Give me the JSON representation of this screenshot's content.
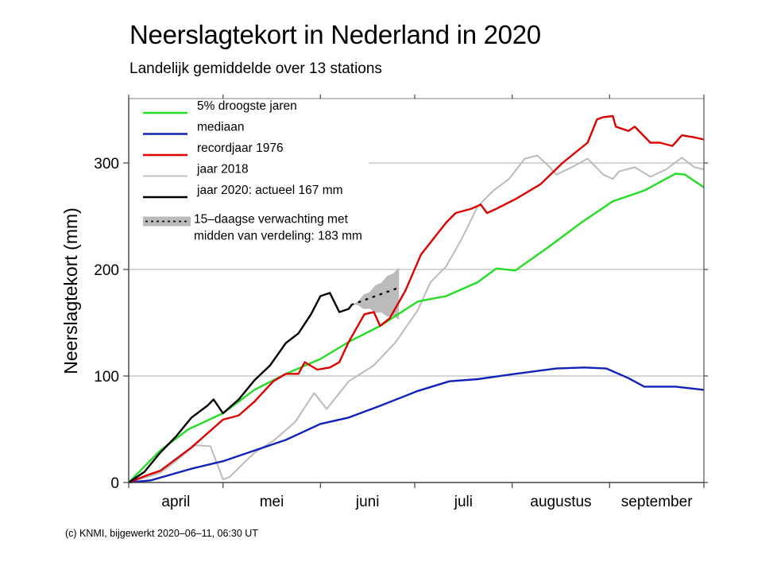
{
  "header": {
    "title": "Neerslagtekort in Nederland in 2020",
    "subtitle": "Landelijk gemiddelde over 13 stations"
  },
  "footer": {
    "credit": "(c) KNMI, bijgewerkt 2020–06–11, 06:30 UT"
  },
  "chart_data": {
    "type": "line",
    "title": "Neerslagtekort in Nederland in 2020",
    "subtitle": "Landelijk gemiddelde over 13 stations",
    "xlabel": "",
    "ylabel": "Neerslagtekort (mm)",
    "x_unit": "days since 1 April",
    "xlim": [
      0,
      183
    ],
    "ylim": [
      0,
      355
    ],
    "grid": "horizontal",
    "yticks": [
      0,
      100,
      200,
      300
    ],
    "ytick_labels": [
      "0",
      "100",
      "200",
      "300"
    ],
    "month_boundaries": [
      0,
      30,
      61,
      91,
      122,
      153,
      183
    ],
    "month_labels": [
      "april",
      "mei",
      "juni",
      "juli",
      "augustus",
      "september"
    ],
    "legend_position": "top-left",
    "series": [
      {
        "name": "5% droogste jaren",
        "color": "#22dd22",
        "points": [
          [
            0,
            0
          ],
          [
            10,
            30
          ],
          [
            19,
            50
          ],
          [
            30,
            65
          ],
          [
            40,
            87
          ],
          [
            50,
            102
          ],
          [
            61,
            116
          ],
          [
            70,
            132
          ],
          [
            80,
            147
          ],
          [
            92,
            170
          ],
          [
            101,
            175
          ],
          [
            111,
            188
          ],
          [
            117,
            201
          ],
          [
            123,
            199
          ],
          [
            134,
            222
          ],
          [
            144,
            244
          ],
          [
            154,
            264
          ],
          [
            164,
            274
          ],
          [
            174,
            290
          ],
          [
            177,
            289
          ],
          [
            183,
            277
          ]
        ]
      },
      {
        "name": "mediaan",
        "color": "#1122bb",
        "points": [
          [
            0,
            0
          ],
          [
            7,
            2
          ],
          [
            20,
            13
          ],
          [
            30,
            20
          ],
          [
            40,
            30
          ],
          [
            50,
            40
          ],
          [
            61,
            55
          ],
          [
            70,
            61
          ],
          [
            80,
            72
          ],
          [
            92,
            86
          ],
          [
            102,
            95
          ],
          [
            111,
            97
          ],
          [
            123,
            102
          ],
          [
            136,
            107
          ],
          [
            145,
            108
          ],
          [
            152,
            107
          ],
          [
            159,
            98
          ],
          [
            164,
            90
          ],
          [
            174,
            90
          ],
          [
            183,
            87
          ]
        ]
      },
      {
        "name": "recordjaar 1976",
        "color": "#dd0000",
        "points": [
          [
            0,
            0
          ],
          [
            6,
            7
          ],
          [
            10,
            11
          ],
          [
            20,
            33
          ],
          [
            30,
            59
          ],
          [
            35,
            63
          ],
          [
            40,
            76
          ],
          [
            46,
            95
          ],
          [
            50,
            102
          ],
          [
            54,
            102
          ],
          [
            56,
            113
          ],
          [
            60,
            106
          ],
          [
            64,
            108
          ],
          [
            67,
            113
          ],
          [
            70,
            132
          ],
          [
            75,
            158
          ],
          [
            78,
            160
          ],
          [
            80,
            147
          ],
          [
            83,
            154
          ],
          [
            88,
            180
          ],
          [
            93,
            214
          ],
          [
            101,
            244
          ],
          [
            104,
            253
          ],
          [
            109,
            257
          ],
          [
            112,
            261
          ],
          [
            114,
            253
          ],
          [
            117,
            257
          ],
          [
            123,
            266
          ],
          [
            131,
            280
          ],
          [
            138,
            300
          ],
          [
            146,
            319
          ],
          [
            149,
            341
          ],
          [
            151,
            343
          ],
          [
            154,
            344
          ],
          [
            155,
            334
          ],
          [
            159,
            330
          ],
          [
            161,
            334
          ],
          [
            164,
            325
          ],
          [
            166,
            319
          ],
          [
            169,
            319
          ],
          [
            173,
            316
          ],
          [
            176,
            326
          ],
          [
            180,
            324
          ],
          [
            183,
            322
          ]
        ]
      },
      {
        "name": "jaar 2018",
        "color": "#bbbbbb",
        "points": [
          [
            0,
            0
          ],
          [
            10,
            9
          ],
          [
            15,
            20
          ],
          [
            21,
            35
          ],
          [
            26,
            34
          ],
          [
            30,
            3
          ],
          [
            32,
            5
          ],
          [
            40,
            28
          ],
          [
            46,
            39
          ],
          [
            53,
            57
          ],
          [
            59,
            84
          ],
          [
            63,
            69
          ],
          [
            70,
            95
          ],
          [
            78,
            110
          ],
          [
            85,
            132
          ],
          [
            92,
            162
          ],
          [
            96,
            188
          ],
          [
            101,
            203
          ],
          [
            106,
            229
          ],
          [
            111,
            259
          ],
          [
            116,
            274
          ],
          [
            121,
            285
          ],
          [
            126,
            304
          ],
          [
            130,
            307
          ],
          [
            134,
            296
          ],
          [
            136,
            289
          ],
          [
            141,
            296
          ],
          [
            146,
            304
          ],
          [
            151,
            289
          ],
          [
            154,
            285
          ],
          [
            156,
            292
          ],
          [
            161,
            296
          ],
          [
            166,
            287
          ],
          [
            171,
            294
          ],
          [
            176,
            305
          ],
          [
            180,
            296
          ],
          [
            183,
            294
          ]
        ]
      },
      {
        "name": "jaar 2020: actueel 167 mm",
        "color": "#000000",
        "points": [
          [
            0,
            0
          ],
          [
            5,
            10
          ],
          [
            10,
            28
          ],
          [
            15,
            43
          ],
          [
            20,
            61
          ],
          [
            25,
            72
          ],
          [
            27,
            78
          ],
          [
            30,
            65
          ],
          [
            35,
            78
          ],
          [
            40,
            96
          ],
          [
            45,
            110
          ],
          [
            50,
            131
          ],
          [
            54,
            140
          ],
          [
            58,
            158
          ],
          [
            61,
            175
          ],
          [
            64,
            178
          ],
          [
            67,
            160
          ],
          [
            70,
            163
          ],
          [
            71,
            167
          ]
        ]
      }
    ],
    "forecast": {
      "name": "15–daagse verwachting met midden van verdeling: 183 mm",
      "color": "#bbbbbb",
      "start": [
        71,
        167
      ],
      "end_day": 86,
      "end_upper": 202,
      "end_median": 183,
      "end_lower": 153
    },
    "legend": [
      {
        "label": "5% droogste jaren",
        "color": "#22dd22",
        "style": "solid"
      },
      {
        "label": "mediaan",
        "color": "#1122bb",
        "style": "solid"
      },
      {
        "label": "recordjaar 1976",
        "color": "#dd0000",
        "style": "solid"
      },
      {
        "label": "jaar 2018",
        "color": "#bbbbbb",
        "style": "solid"
      },
      {
        "label": "jaar 2020: actueel 167 mm",
        "color": "#000000",
        "style": "solid"
      },
      {
        "label": "15–daagse verwachting met",
        "label2": "midden van verdeling: 183 mm",
        "color": "#bbbbbb",
        "style": "band-dotted"
      }
    ]
  }
}
